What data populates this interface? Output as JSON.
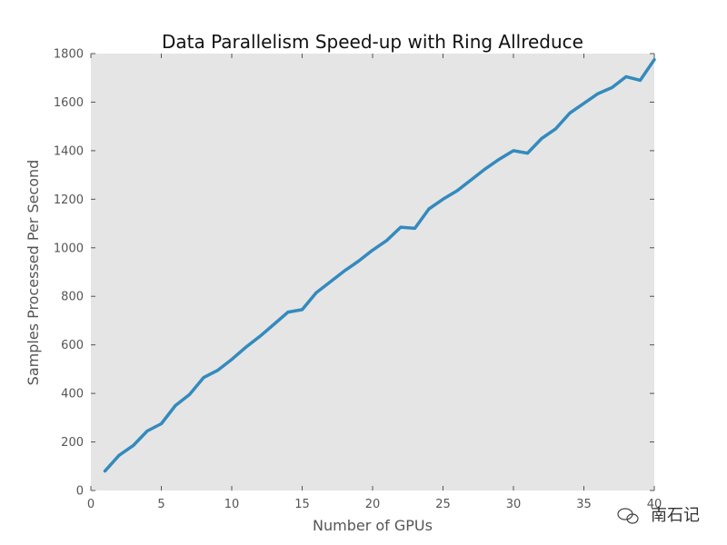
{
  "chart_data": {
    "type": "line",
    "title": "Data Parallelism Speed-up with Ring Allreduce",
    "xlabel": "Number of GPUs",
    "ylabel": "Samples Processed Per Second",
    "xlim": [
      0,
      40
    ],
    "ylim": [
      0,
      1800
    ],
    "xticks": [
      0,
      5,
      10,
      15,
      20,
      25,
      30,
      35,
      40
    ],
    "yticks": [
      0,
      200,
      400,
      600,
      800,
      1000,
      1200,
      1400,
      1600,
      1800
    ],
    "grid": false,
    "series": [
      {
        "x": [
          1,
          2,
          3,
          4,
          5,
          6,
          7,
          8,
          9,
          10,
          11,
          12,
          13,
          14,
          15,
          16,
          17,
          18,
          19,
          20,
          21,
          22,
          23,
          24,
          25,
          26,
          27,
          28,
          29,
          30,
          31,
          32,
          33,
          34,
          35,
          36,
          37,
          38,
          39,
          40
        ],
        "values": [
          80,
          145,
          185,
          245,
          275,
          350,
          395,
          465,
          495,
          540,
          590,
          635,
          685,
          735,
          745,
          815,
          860,
          905,
          945,
          990,
          1030,
          1085,
          1080,
          1160,
          1200,
          1235,
          1280,
          1325,
          1365,
          1400,
          1390,
          1450,
          1490,
          1555,
          1595,
          1635,
          1660,
          1705,
          1690,
          1775
        ],
        "color": "#348ABD"
      }
    ]
  },
  "watermark": {
    "text": "南石记"
  }
}
